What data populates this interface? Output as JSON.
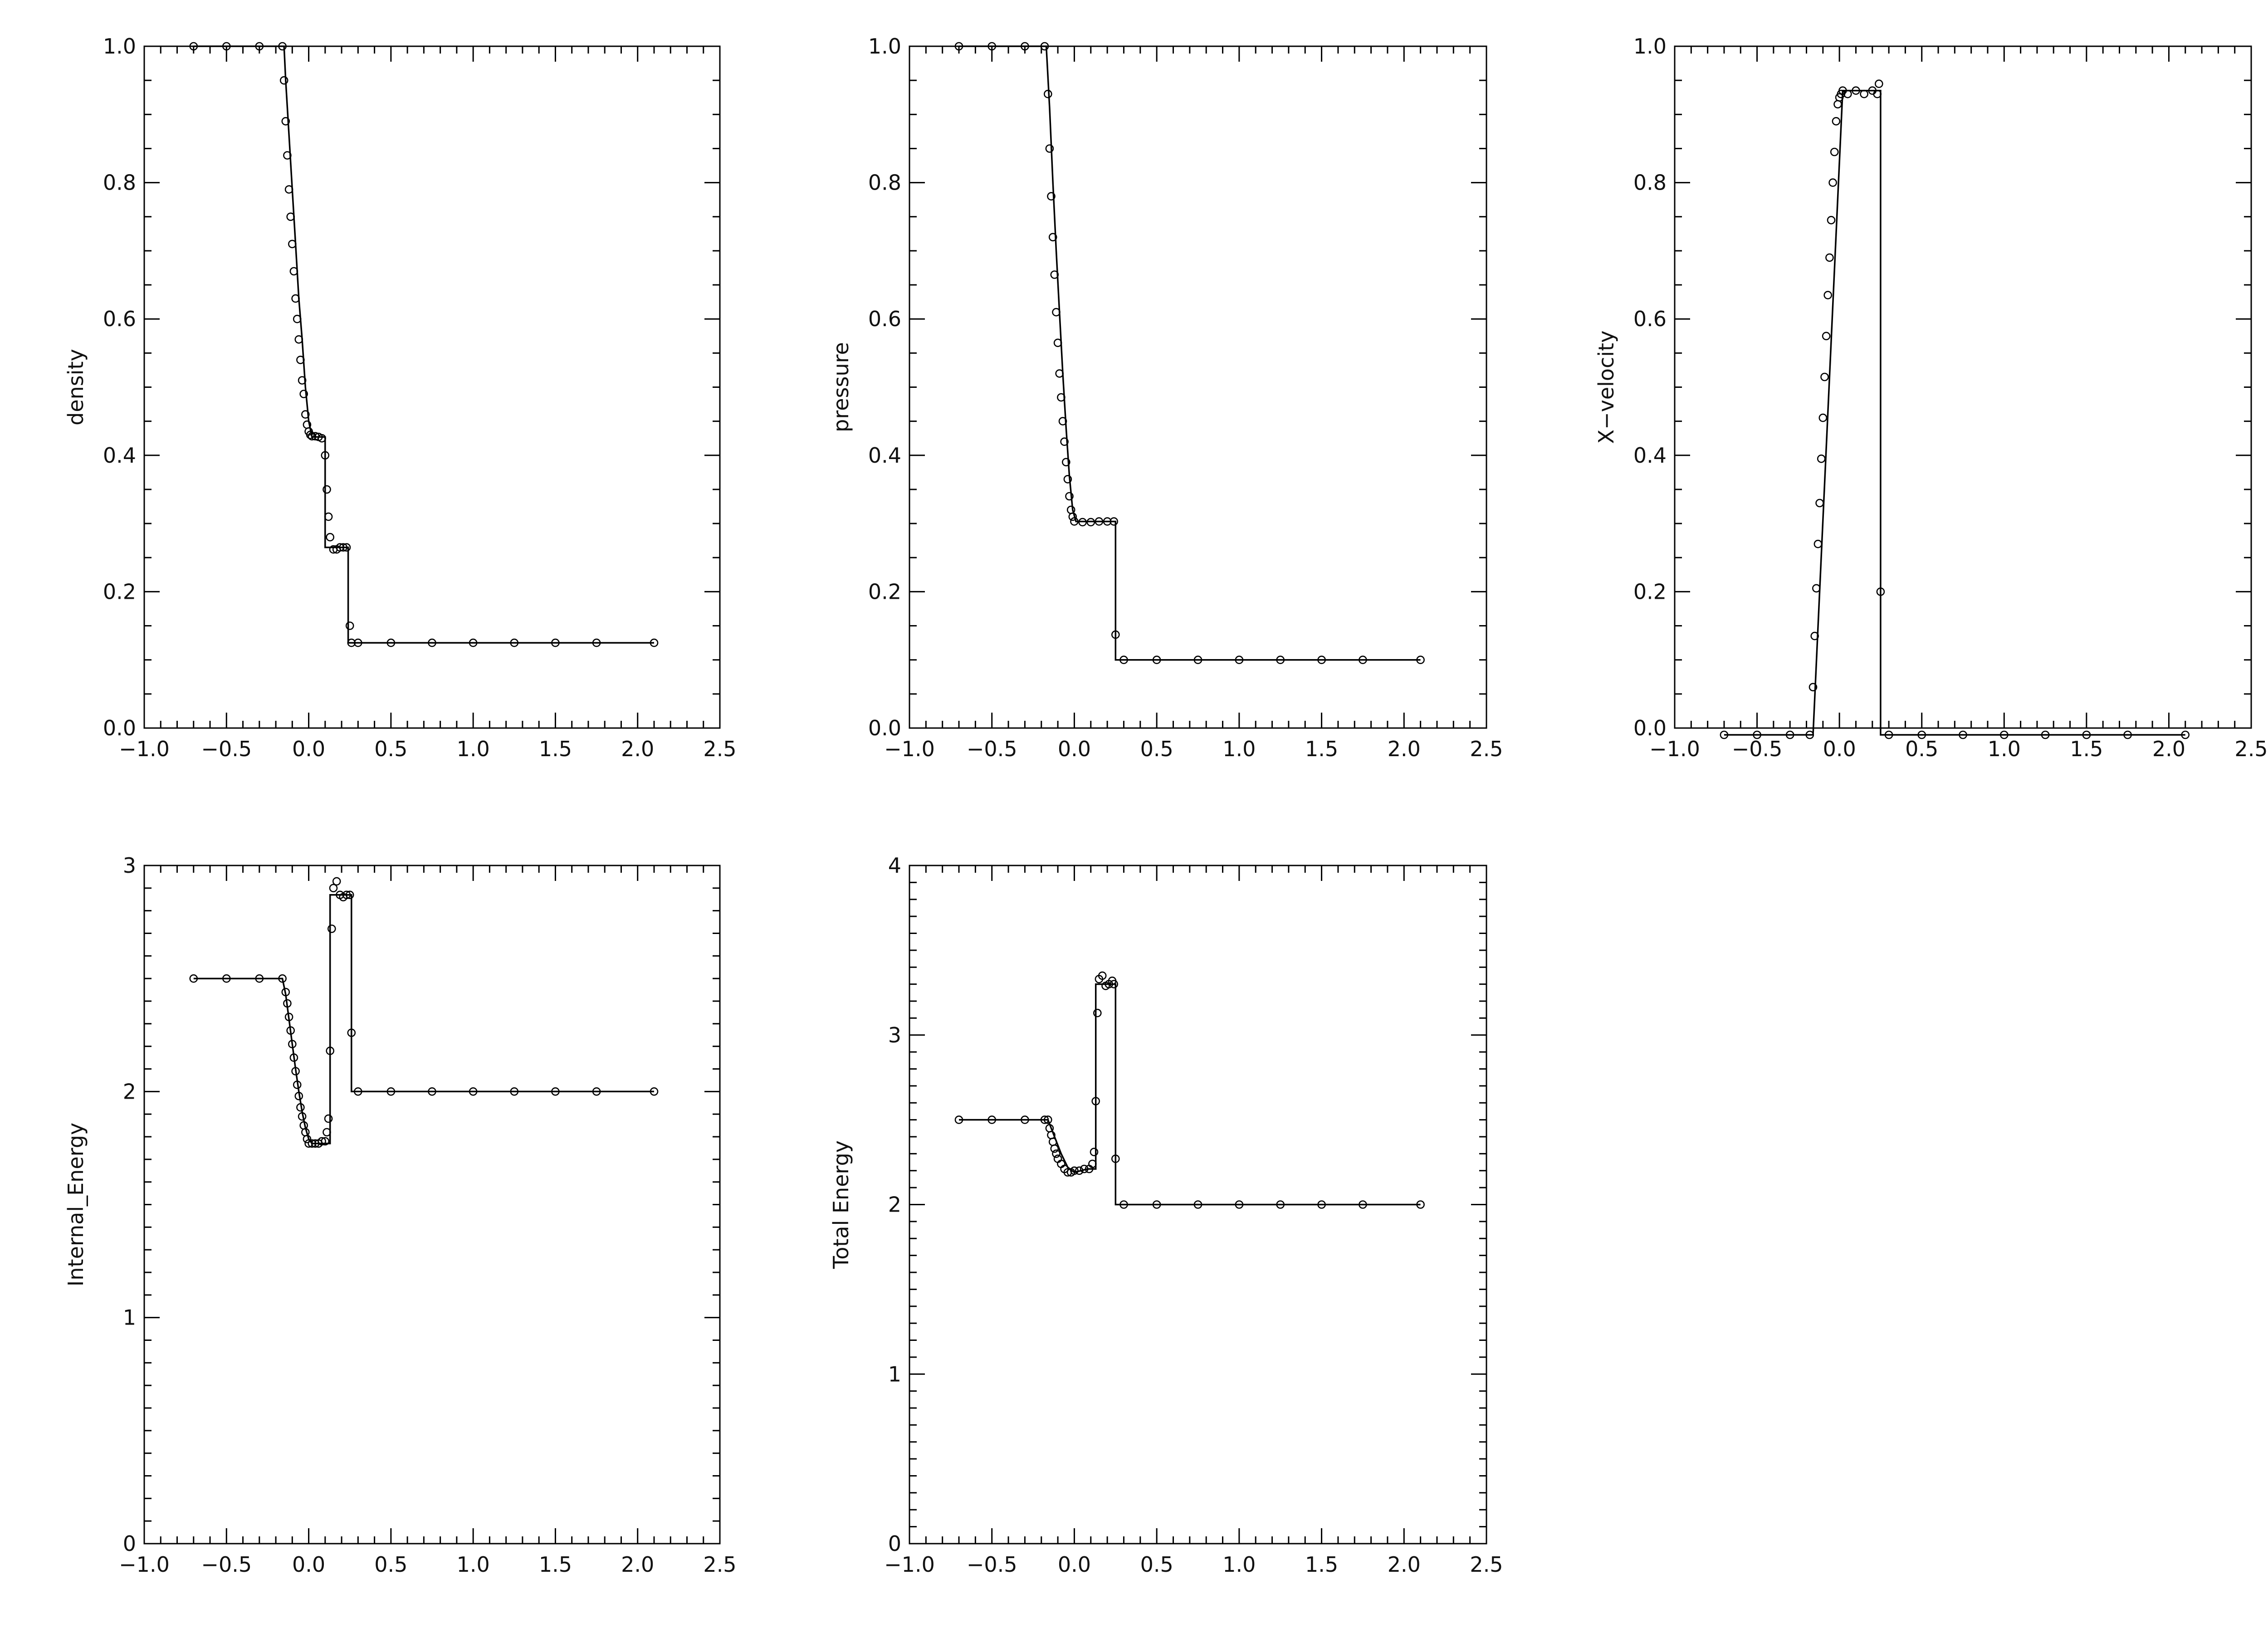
{
  "chart_data": [
    {
      "type": "line",
      "title": "",
      "xlabel": "",
      "ylabel": "density",
      "xlim": [
        -1.0,
        2.5
      ],
      "ylim": [
        0.0,
        1.0
      ],
      "xticks": [
        "−1.0",
        "−0.5",
        "0.0",
        "0.5",
        "1.0",
        "1.5",
        "2.0",
        "2.5"
      ],
      "yticks": [
        "0.0",
        "0.2",
        "0.4",
        "0.6",
        "0.8",
        "1.0"
      ],
      "grid": false,
      "series": [
        {
          "style": "line",
          "x": [
            -0.7,
            -0.15,
            -0.14,
            -0.12,
            -0.1,
            -0.08,
            -0.06,
            -0.04,
            -0.02,
            0.0,
            0.02,
            0.1,
            0.1,
            0.13,
            0.13,
            0.24,
            0.24,
            0.26,
            0.26,
            2.1
          ],
          "y": [
            1.0,
            1.0,
            0.95,
            0.87,
            0.79,
            0.71,
            0.63,
            0.57,
            0.5,
            0.45,
            0.427,
            0.427,
            0.265,
            0.265,
            0.265,
            0.265,
            0.125,
            0.125,
            0.125,
            0.125
          ]
        },
        {
          "style": "markers",
          "x": [
            -0.7,
            -0.5,
            -0.3,
            -0.16,
            -0.15,
            -0.14,
            -0.13,
            -0.12,
            -0.11,
            -0.1,
            -0.09,
            -0.08,
            -0.07,
            -0.06,
            -0.05,
            -0.04,
            -0.03,
            -0.02,
            -0.01,
            0.0,
            0.01,
            0.02,
            0.04,
            0.06,
            0.08,
            0.1,
            0.11,
            0.12,
            0.13,
            0.15,
            0.17,
            0.19,
            0.21,
            0.23,
            0.25,
            0.26,
            0.3,
            0.5,
            0.75,
            1.0,
            1.25,
            1.5,
            1.75,
            2.1
          ],
          "y": [
            1.0,
            1.0,
            1.0,
            1.0,
            0.95,
            0.89,
            0.84,
            0.79,
            0.75,
            0.71,
            0.67,
            0.63,
            0.6,
            0.57,
            0.54,
            0.51,
            0.49,
            0.46,
            0.445,
            0.435,
            0.43,
            0.428,
            0.428,
            0.427,
            0.425,
            0.4,
            0.35,
            0.31,
            0.28,
            0.262,
            0.262,
            0.265,
            0.265,
            0.265,
            0.15,
            0.125,
            0.125,
            0.125,
            0.125,
            0.125,
            0.125,
            0.125,
            0.125,
            0.125
          ]
        }
      ]
    },
    {
      "type": "line",
      "title": "",
      "xlabel": "",
      "ylabel": "pressure",
      "xlim": [
        -1.0,
        2.5
      ],
      "ylim": [
        0.0,
        1.0
      ],
      "xticks": [
        "−1.0",
        "−0.5",
        "0.0",
        "0.5",
        "1.0",
        "1.5",
        "2.0",
        "2.5"
      ],
      "yticks": [
        "0.0",
        "0.2",
        "0.4",
        "0.6",
        "0.8",
        "1.0"
      ],
      "grid": false,
      "series": [
        {
          "style": "line",
          "x": [
            -0.7,
            -0.17,
            -0.15,
            -0.13,
            -0.11,
            -0.09,
            -0.07,
            -0.05,
            -0.03,
            -0.01,
            0.01,
            0.25,
            0.25,
            2.1
          ],
          "y": [
            1.0,
            1.0,
            0.91,
            0.8,
            0.7,
            0.61,
            0.52,
            0.44,
            0.37,
            0.32,
            0.303,
            0.303,
            0.1,
            0.1
          ]
        },
        {
          "style": "markers",
          "x": [
            -0.7,
            -0.5,
            -0.3,
            -0.18,
            -0.16,
            -0.15,
            -0.14,
            -0.13,
            -0.12,
            -0.11,
            -0.1,
            -0.09,
            -0.08,
            -0.07,
            -0.06,
            -0.05,
            -0.04,
            -0.03,
            -0.02,
            -0.01,
            0.0,
            0.05,
            0.1,
            0.15,
            0.2,
            0.24,
            0.25,
            0.3,
            0.5,
            0.75,
            1.0,
            1.25,
            1.5,
            1.75,
            2.1
          ],
          "y": [
            1.0,
            1.0,
            1.0,
            1.0,
            0.93,
            0.85,
            0.78,
            0.72,
            0.665,
            0.61,
            0.565,
            0.52,
            0.485,
            0.45,
            0.42,
            0.39,
            0.365,
            0.34,
            0.32,
            0.31,
            0.303,
            0.302,
            0.302,
            0.303,
            0.303,
            0.303,
            0.137,
            0.1,
            0.1,
            0.1,
            0.1,
            0.1,
            0.1,
            0.1,
            0.1
          ]
        }
      ]
    },
    {
      "type": "line",
      "title": "",
      "xlabel": "",
      "ylabel": "X−velocity",
      "xlim": [
        -1.0,
        2.5
      ],
      "ylim": [
        0.0,
        1.0
      ],
      "xticks": [
        "−1.0",
        "−0.5",
        "0.0",
        "0.5",
        "1.0",
        "1.5",
        "2.0",
        "2.5"
      ],
      "yticks": [
        "0.0",
        "0.2",
        "0.4",
        "0.6",
        "0.8",
        "1.0"
      ],
      "grid": false,
      "series": [
        {
          "style": "line",
          "x": [
            -0.7,
            -0.16,
            0.02,
            0.25,
            0.25,
            2.1
          ],
          "y": [
            -0.01,
            -0.01,
            0.935,
            0.935,
            -0.01,
            -0.01
          ]
        },
        {
          "style": "markers",
          "x": [
            -0.7,
            -0.5,
            -0.3,
            -0.18,
            -0.16,
            -0.15,
            -0.14,
            -0.13,
            -0.12,
            -0.11,
            -0.1,
            -0.09,
            -0.08,
            -0.07,
            -0.06,
            -0.05,
            -0.04,
            -0.03,
            -0.02,
            -0.01,
            0.0,
            0.01,
            0.02,
            0.05,
            0.1,
            0.15,
            0.2,
            0.23,
            0.24,
            0.25,
            0.3,
            0.5,
            0.75,
            1.0,
            1.25,
            1.5,
            1.75,
            2.1
          ],
          "y": [
            -0.01,
            -0.01,
            -0.01,
            -0.01,
            0.06,
            0.135,
            0.205,
            0.27,
            0.33,
            0.395,
            0.455,
            0.515,
            0.575,
            0.635,
            0.69,
            0.745,
            0.8,
            0.845,
            0.89,
            0.915,
            0.925,
            0.93,
            0.935,
            0.93,
            0.935,
            0.93,
            0.935,
            0.93,
            0.945,
            0.2,
            -0.01,
            -0.01,
            -0.01,
            -0.01,
            -0.01,
            -0.01,
            -0.01,
            -0.01
          ]
        }
      ]
    },
    {
      "type": "line",
      "title": "",
      "xlabel": "",
      "ylabel": "Internal_Energy",
      "xlim": [
        -1.0,
        2.5
      ],
      "ylim": [
        0,
        3
      ],
      "xticks": [
        "−1.0",
        "−0.5",
        "0.0",
        "0.5",
        "1.0",
        "1.5",
        "2.0",
        "2.5"
      ],
      "yticks": [
        "0",
        "1",
        "2",
        "3"
      ],
      "grid": false,
      "series": [
        {
          "style": "line",
          "x": [
            -0.7,
            -0.16,
            -0.14,
            -0.12,
            -0.1,
            -0.08,
            -0.06,
            -0.04,
            -0.02,
            0.0,
            0.02,
            0.1,
            0.12,
            0.13,
            0.13,
            0.26,
            0.26,
            2.1
          ],
          "y": [
            2.5,
            2.5,
            2.43,
            2.32,
            2.21,
            2.1,
            2.0,
            1.91,
            1.84,
            1.79,
            1.77,
            1.77,
            1.77,
            1.77,
            2.87,
            2.87,
            2.0,
            2.0
          ]
        },
        {
          "style": "markers",
          "x": [
            -0.7,
            -0.5,
            -0.3,
            -0.16,
            -0.14,
            -0.13,
            -0.12,
            -0.11,
            -0.1,
            -0.09,
            -0.08,
            -0.07,
            -0.06,
            -0.05,
            -0.04,
            -0.03,
            -0.02,
            -0.01,
            0.0,
            0.02,
            0.04,
            0.06,
            0.08,
            0.1,
            0.11,
            0.12,
            0.13,
            0.14,
            0.15,
            0.17,
            0.19,
            0.21,
            0.23,
            0.25,
            0.26,
            0.3,
            0.5,
            0.75,
            1.0,
            1.25,
            1.5,
            1.75,
            2.1
          ],
          "y": [
            2.5,
            2.5,
            2.5,
            2.5,
            2.44,
            2.39,
            2.33,
            2.27,
            2.21,
            2.15,
            2.09,
            2.03,
            1.98,
            1.93,
            1.89,
            1.85,
            1.82,
            1.79,
            1.77,
            1.77,
            1.77,
            1.77,
            1.78,
            1.78,
            1.82,
            1.88,
            2.18,
            2.72,
            2.9,
            2.93,
            2.87,
            2.86,
            2.87,
            2.87,
            2.26,
            2.0,
            2.0,
            2.0,
            2.0,
            2.0,
            2.0,
            2.0,
            2.0
          ]
        }
      ]
    },
    {
      "type": "line",
      "title": "",
      "xlabel": "",
      "ylabel": "Total Energy",
      "xlim": [
        -1.0,
        2.5
      ],
      "ylim": [
        0,
        4
      ],
      "xticks": [
        "−1.0",
        "−0.5",
        "0.0",
        "0.5",
        "1.0",
        "1.5",
        "2.0",
        "2.5"
      ],
      "yticks": [
        "0",
        "1",
        "2",
        "3",
        "4"
      ],
      "grid": false,
      "series": [
        {
          "style": "line",
          "x": [
            -0.7,
            -0.16,
            -0.12,
            -0.08,
            -0.04,
            0.0,
            0.04,
            0.08,
            0.12,
            0.13,
            0.13,
            0.25,
            0.25,
            2.1
          ],
          "y": [
            2.5,
            2.5,
            2.4,
            2.3,
            2.22,
            2.19,
            2.2,
            2.21,
            2.21,
            2.21,
            3.3,
            3.3,
            2.0,
            2.0
          ]
        },
        {
          "style": "markers",
          "x": [
            -0.7,
            -0.5,
            -0.3,
            -0.18,
            -0.16,
            -0.15,
            -0.14,
            -0.13,
            -0.12,
            -0.11,
            -0.1,
            -0.08,
            -0.06,
            -0.04,
            -0.02,
            0.0,
            0.03,
            0.06,
            0.09,
            0.11,
            0.12,
            0.13,
            0.14,
            0.15,
            0.17,
            0.19,
            0.21,
            0.23,
            0.24,
            0.25,
            0.3,
            0.5,
            0.75,
            1.0,
            1.25,
            1.5,
            1.75,
            2.1
          ],
          "y": [
            2.5,
            2.5,
            2.5,
            2.5,
            2.5,
            2.45,
            2.41,
            2.37,
            2.33,
            2.3,
            2.27,
            2.24,
            2.21,
            2.19,
            2.19,
            2.2,
            2.2,
            2.21,
            2.21,
            2.24,
            2.31,
            2.61,
            3.13,
            3.33,
            3.35,
            3.29,
            3.3,
            3.32,
            3.3,
            2.27,
            2.0,
            2.0,
            2.0,
            2.0,
            2.0,
            2.0,
            2.0,
            2.0
          ]
        }
      ]
    }
  ]
}
